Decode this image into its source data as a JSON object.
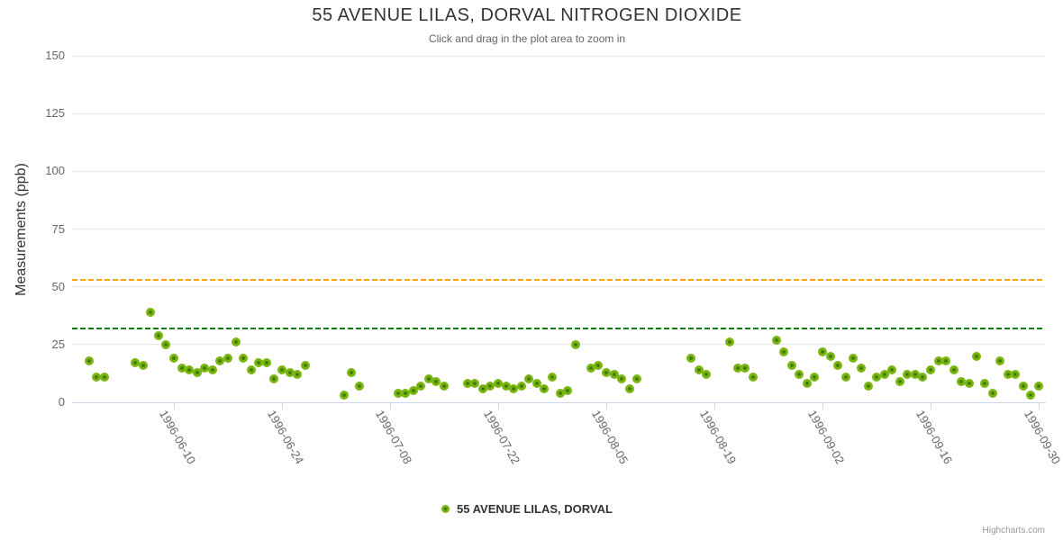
{
  "header": {
    "title": "55 AVENUE LILAS, DORVAL NITROGEN DIOXIDE",
    "subtitle": "Click and drag in the plot area to zoom in"
  },
  "axes": {
    "y": {
      "title": "Measurements (ppb)",
      "tick_labels": [
        "0",
        "25",
        "50",
        "75",
        "100",
        "125",
        "150"
      ],
      "tick_values": [
        0,
        25,
        50,
        75,
        100,
        125,
        150
      ],
      "min": 0,
      "max": 150
    },
    "x": {
      "tick_labels": [
        "1996-06-10",
        "1996-06-24",
        "1996-07-08",
        "1996-07-22",
        "1996-08-05",
        "1996-08-19",
        "1996-09-02",
        "1996-09-16",
        "1996-09-30"
      ]
    }
  },
  "legend": {
    "items": [
      {
        "label": "55 AVENUE LILAS, DORVAL",
        "marker": "circle-icon",
        "color": "#77b40e"
      }
    ]
  },
  "credits": {
    "label": "Highcharts.com"
  },
  "colors": {
    "marker_outer": "#7ab40e",
    "marker_inner": "#3f7d04",
    "grid": "#e6e6e6",
    "axis_line": "#ccd6eb",
    "reference_line_upper": "#ffa500",
    "reference_line_lower": "#0b7e0b",
    "title_text": "#333333",
    "muted_text": "#666666"
  },
  "chart_data": {
    "type": "scatter",
    "title": "55 AVENUE LILAS, DORVAL NITROGEN DIOXIDE",
    "subtitle": "Click and drag in the plot area to zoom in",
    "xlabel": "",
    "ylabel": "Measurements (ppb)",
    "ylim": [
      0,
      150
    ],
    "y_ticks": [
      0,
      25,
      50,
      75,
      100,
      125,
      150
    ],
    "x_type": "datetime",
    "x_tick_labels": [
      "1996-06-10",
      "1996-06-24",
      "1996-07-08",
      "1996-07-22",
      "1996-08-05",
      "1996-08-19",
      "1996-09-02",
      "1996-09-16",
      "1996-09-30"
    ],
    "grid": true,
    "legend_position": "bottom",
    "reference_lines": [
      {
        "value": 53,
        "color": "#ffa500",
        "style": "dashed"
      },
      {
        "value": 32,
        "color": "#0b7e0b",
        "style": "dashed"
      }
    ],
    "series": [
      {
        "name": "55 AVENUE LILAS, DORVAL",
        "color": "#77b40e",
        "points": [
          [
            "1996-05-30",
            18
          ],
          [
            "1996-05-31",
            11
          ],
          [
            "1996-06-01",
            11
          ],
          [
            "1996-06-05",
            17
          ],
          [
            "1996-06-06",
            16
          ],
          [
            "1996-06-07",
            39
          ],
          [
            "1996-06-08",
            29
          ],
          [
            "1996-06-09",
            25
          ],
          [
            "1996-06-10",
            19
          ],
          [
            "1996-06-11",
            15
          ],
          [
            "1996-06-12",
            14
          ],
          [
            "1996-06-13",
            13
          ],
          [
            "1996-06-14",
            15
          ],
          [
            "1996-06-15",
            14
          ],
          [
            "1996-06-16",
            18
          ],
          [
            "1996-06-17",
            19
          ],
          [
            "1996-06-18",
            26
          ],
          [
            "1996-06-19",
            19
          ],
          [
            "1996-06-20",
            14
          ],
          [
            "1996-06-21",
            17
          ],
          [
            "1996-06-22",
            17
          ],
          [
            "1996-06-23",
            10
          ],
          [
            "1996-06-24",
            14
          ],
          [
            "1996-06-25",
            13
          ],
          [
            "1996-06-26",
            12
          ],
          [
            "1996-06-27",
            16
          ],
          [
            "1996-07-02",
            3
          ],
          [
            "1996-07-03",
            13
          ],
          [
            "1996-07-04",
            7
          ],
          [
            "1996-07-09",
            4
          ],
          [
            "1996-07-10",
            4
          ],
          [
            "1996-07-11",
            5
          ],
          [
            "1996-07-12",
            7
          ],
          [
            "1996-07-13",
            10
          ],
          [
            "1996-07-14",
            9
          ],
          [
            "1996-07-15",
            7
          ],
          [
            "1996-07-18",
            8
          ],
          [
            "1996-07-19",
            8
          ],
          [
            "1996-07-20",
            6
          ],
          [
            "1996-07-21",
            7
          ],
          [
            "1996-07-22",
            8
          ],
          [
            "1996-07-23",
            7
          ],
          [
            "1996-07-24",
            6
          ],
          [
            "1996-07-25",
            7
          ],
          [
            "1996-07-26",
            10
          ],
          [
            "1996-07-27",
            8
          ],
          [
            "1996-07-28",
            6
          ],
          [
            "1996-07-29",
            11
          ],
          [
            "1996-07-30",
            4
          ],
          [
            "1996-07-31",
            5
          ],
          [
            "1996-08-01",
            25
          ],
          [
            "1996-08-03",
            15
          ],
          [
            "1996-08-04",
            16
          ],
          [
            "1996-08-05",
            13
          ],
          [
            "1996-08-06",
            12
          ],
          [
            "1996-08-07",
            10
          ],
          [
            "1996-08-08",
            6
          ],
          [
            "1996-08-09",
            10
          ],
          [
            "1996-08-16",
            19
          ],
          [
            "1996-08-17",
            14
          ],
          [
            "1996-08-18",
            12
          ],
          [
            "1996-08-21",
            26
          ],
          [
            "1996-08-22",
            15
          ],
          [
            "1996-08-23",
            15
          ],
          [
            "1996-08-24",
            11
          ],
          [
            "1996-08-27",
            27
          ],
          [
            "1996-08-28",
            22
          ],
          [
            "1996-08-29",
            16
          ],
          [
            "1996-08-30",
            12
          ],
          [
            "1996-08-31",
            8
          ],
          [
            "1996-09-01",
            11
          ],
          [
            "1996-09-02",
            22
          ],
          [
            "1996-09-03",
            20
          ],
          [
            "1996-09-04",
            16
          ],
          [
            "1996-09-05",
            11
          ],
          [
            "1996-09-06",
            19
          ],
          [
            "1996-09-07",
            15
          ],
          [
            "1996-09-08",
            7
          ],
          [
            "1996-09-09",
            11
          ],
          [
            "1996-09-10",
            12
          ],
          [
            "1996-09-11",
            14
          ],
          [
            "1996-09-12",
            9
          ],
          [
            "1996-09-13",
            12
          ],
          [
            "1996-09-14",
            12
          ],
          [
            "1996-09-15",
            11
          ],
          [
            "1996-09-16",
            14
          ],
          [
            "1996-09-17",
            18
          ],
          [
            "1996-09-18",
            18
          ],
          [
            "1996-09-19",
            14
          ],
          [
            "1996-09-20",
            9
          ],
          [
            "1996-09-21",
            8
          ],
          [
            "1996-09-22",
            20
          ],
          [
            "1996-09-23",
            8
          ],
          [
            "1996-09-24",
            4
          ],
          [
            "1996-09-25",
            18
          ],
          [
            "1996-09-26",
            12
          ],
          [
            "1996-09-27",
            12
          ],
          [
            "1996-09-28",
            7
          ],
          [
            "1996-09-29",
            3
          ],
          [
            "1996-09-30",
            7
          ]
        ]
      }
    ]
  }
}
